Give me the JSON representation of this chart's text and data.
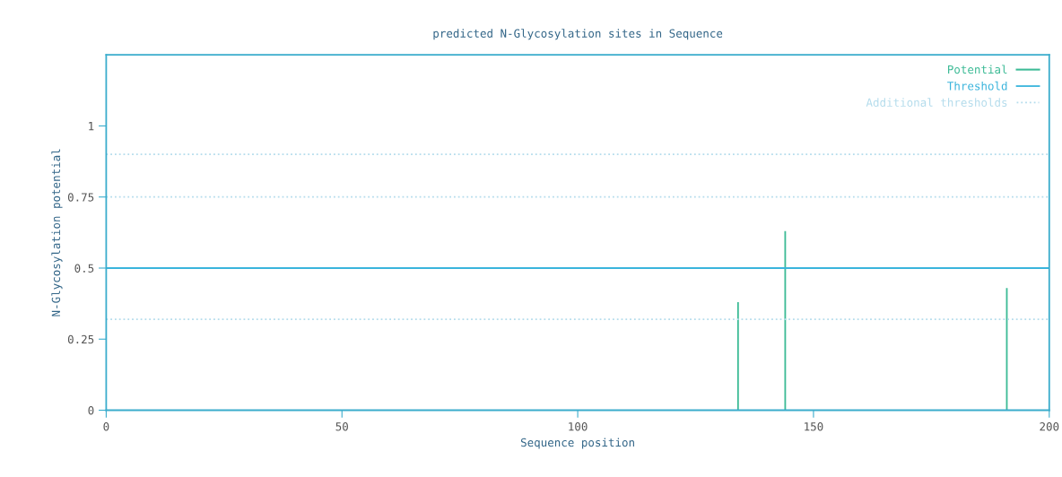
{
  "chart_data": {
    "type": "bar",
    "title": "predicted N-Glycosylation sites in Sequence",
    "xlabel": "Sequence position",
    "ylabel": "N-Glycosylation potential",
    "x": [
      134,
      144,
      191
    ],
    "series": [
      {
        "name": "Potential",
        "color": "#3dbb96",
        "values": [
          0.38,
          0.63,
          0.43
        ]
      }
    ],
    "xlim": [
      0,
      200
    ],
    "xticks": [
      0,
      50,
      100,
      150,
      200
    ],
    "ylim": [
      0,
      1.25
    ],
    "yticks": [
      0,
      0.25,
      0.5,
      0.75,
      1
    ],
    "ref_lines": [
      {
        "axis": "y",
        "value": 0.5,
        "label": "Threshold",
        "color": "#3ab4dc",
        "line_style": "solid"
      },
      {
        "axis": "y",
        "value": 0.9,
        "label": "Additional thresholds",
        "color": "#b4dcec",
        "line_style": "dotted"
      },
      {
        "axis": "y",
        "value": 0.75,
        "color": "#b4dcec",
        "line_style": "dotted"
      },
      {
        "axis": "y",
        "value": 0.32,
        "color": "#b4dcec",
        "line_style": "dotted"
      }
    ],
    "legend": "top right",
    "grid": false
  }
}
